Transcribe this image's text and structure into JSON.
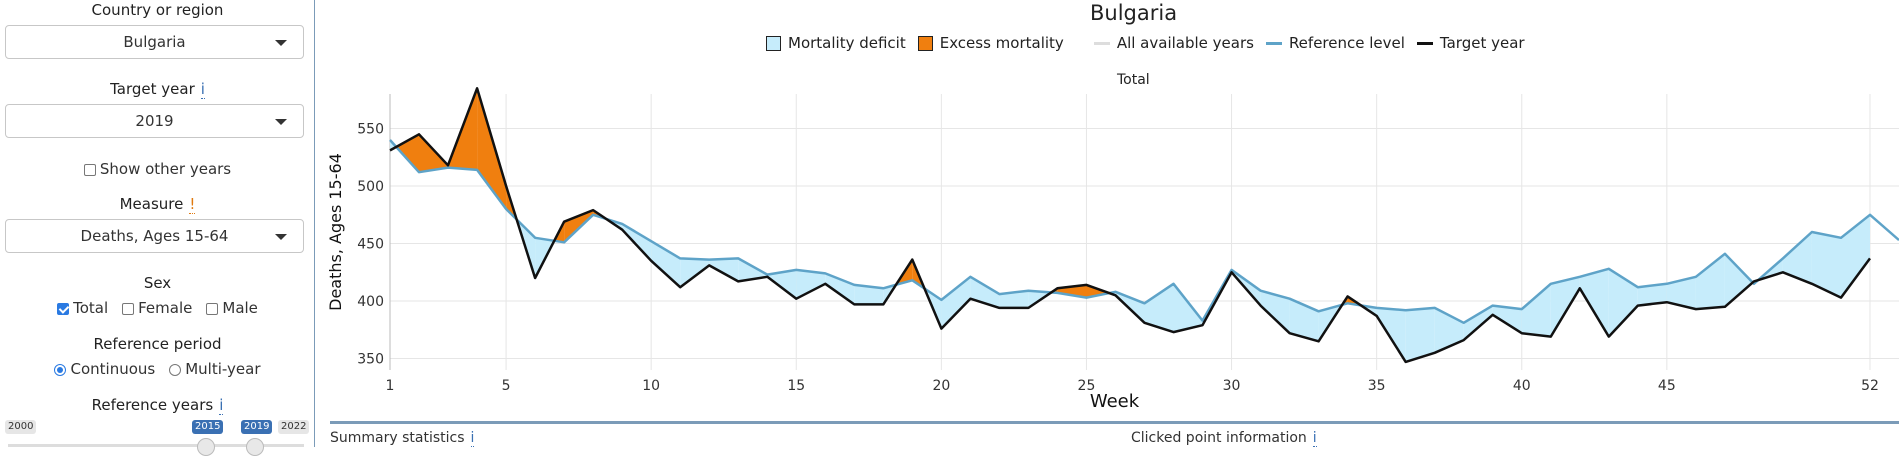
{
  "sidebar": {
    "country": {
      "label": "Country or region",
      "value": "Bulgaria"
    },
    "target_year": {
      "label": "Target year",
      "info": "i",
      "value": "2019"
    },
    "show_other_years": {
      "label": "Show other years",
      "checked": false
    },
    "measure": {
      "label": "Measure",
      "warn": "!",
      "value": "Deaths, Ages 15-64"
    },
    "sex": {
      "label": "Sex",
      "options": [
        {
          "label": "Total",
          "checked": true
        },
        {
          "label": "Female",
          "checked": false
        },
        {
          "label": "Male",
          "checked": false
        }
      ]
    },
    "reference_period": {
      "label": "Reference period",
      "options": [
        {
          "label": "Continuous",
          "checked": true
        },
        {
          "label": "Multi-year",
          "checked": false
        }
      ]
    },
    "reference_years": {
      "label": "Reference years",
      "info": "i",
      "min": "2000",
      "from": "2015",
      "to": "2019",
      "max": "2022"
    }
  },
  "chart_data": {
    "type": "line",
    "title": "Bulgaria",
    "subtitle": "Total",
    "xlabel": "Week",
    "ylabel": "Deaths, Ages 15-64",
    "xlim": [
      1,
      53
    ],
    "ylim": [
      340,
      580
    ],
    "xticks": [
      1,
      5,
      10,
      15,
      20,
      25,
      30,
      35,
      40,
      45,
      52
    ],
    "yticks": [
      350,
      400,
      450,
      500,
      550
    ],
    "grid": true,
    "legend_position": "top",
    "legend": [
      {
        "name": "Mortality deficit",
        "kind": "fill",
        "color": "#c6ecfb"
      },
      {
        "name": "Excess mortality",
        "kind": "fill",
        "color": "#f07f0f"
      },
      {
        "name": "All available years",
        "kind": "line",
        "color": "#dddddd"
      },
      {
        "name": "Reference level",
        "kind": "line",
        "color": "#5ea3c8"
      },
      {
        "name": "Target year",
        "kind": "line",
        "color": "#111111"
      }
    ],
    "series": [
      {
        "name": "Reference level",
        "color": "#5ea3c8",
        "x": [
          1,
          2,
          3,
          4,
          5,
          6,
          7,
          8,
          9,
          10,
          11,
          12,
          13,
          14,
          15,
          16,
          17,
          18,
          19,
          20,
          21,
          22,
          23,
          24,
          25,
          26,
          27,
          28,
          29,
          30,
          31,
          32,
          33,
          34,
          35,
          36,
          37,
          38,
          39,
          40,
          41,
          42,
          43,
          44,
          45,
          46,
          47,
          48,
          49,
          50,
          51,
          52,
          53
        ],
        "values": [
          540,
          512,
          516,
          514,
          480,
          455,
          451,
          475,
          467,
          452,
          437,
          436,
          437,
          423,
          427,
          424,
          414,
          411,
          418,
          401,
          421,
          406,
          409,
          407,
          403,
          408,
          398,
          415,
          383,
          427,
          409,
          402,
          391,
          398,
          394,
          392,
          394,
          381,
          396,
          393,
          415,
          421,
          428,
          412,
          415,
          421,
          441,
          415,
          437,
          460,
          455,
          475,
          453
        ]
      },
      {
        "name": "Target year",
        "color": "#111111",
        "x": [
          1,
          2,
          3,
          4,
          5,
          6,
          7,
          8,
          9,
          10,
          11,
          12,
          13,
          14,
          15,
          16,
          17,
          18,
          19,
          20,
          21,
          22,
          23,
          24,
          25,
          26,
          27,
          28,
          29,
          30,
          31,
          32,
          33,
          34,
          35,
          36,
          37,
          38,
          39,
          40,
          41,
          42,
          43,
          44,
          45,
          46,
          47,
          48,
          49,
          50,
          51,
          52
        ],
        "values": [
          531,
          545,
          518,
          585,
          500,
          420,
          469,
          479,
          462,
          435,
          412,
          431,
          417,
          421,
          402,
          415,
          397,
          397,
          436,
          376,
          402,
          394,
          394,
          411,
          414,
          405,
          381,
          373,
          379,
          425,
          396,
          372,
          365,
          404,
          387,
          347,
          355,
          366,
          388,
          372,
          369,
          411,
          369,
          396,
          399,
          393,
          395,
          417,
          425,
          415,
          403,
          437
        ]
      }
    ]
  },
  "bottom": {
    "summary": "Summary statistics",
    "summary_info": "i",
    "clicked": "Clicked point information",
    "clicked_info": "i"
  }
}
